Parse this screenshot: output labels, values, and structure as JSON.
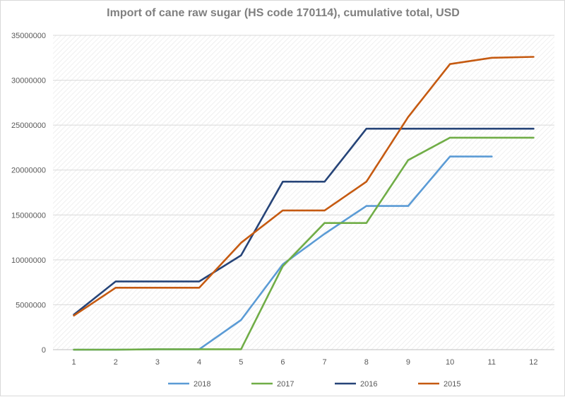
{
  "chart_data": {
    "type": "line",
    "title": "Import of cane raw sugar (HS code 170114), cumulative total, USD",
    "xlabel": "",
    "ylabel": "",
    "x": [
      1,
      2,
      3,
      4,
      5,
      6,
      7,
      8,
      9,
      10,
      11,
      12
    ],
    "ylim": [
      0,
      35000000
    ],
    "y_ticks": [
      "0",
      "5000000",
      "10000000",
      "15000000",
      "20000000",
      "25000000",
      "30000000",
      "35000000"
    ],
    "grid": true,
    "legend_position": "bottom",
    "series": [
      {
        "name": "2018",
        "color": "#5b9bd5",
        "values": [
          0,
          0,
          50000,
          50000,
          3300000,
          9500000,
          12900000,
          16000000,
          16000000,
          21500000,
          21500000,
          null
        ]
      },
      {
        "name": "2017",
        "color": "#70ad47",
        "values": [
          0,
          0,
          50000,
          50000,
          50000,
          9300000,
          14100000,
          14100000,
          21100000,
          23600000,
          23600000,
          23600000
        ]
      },
      {
        "name": "2016",
        "color": "#264478",
        "values": [
          3900000,
          7600000,
          7600000,
          7600000,
          10500000,
          18700000,
          18700000,
          24600000,
          24600000,
          24600000,
          24600000,
          24600000
        ]
      },
      {
        "name": "2015",
        "color": "#c55a11",
        "values": [
          3800000,
          6900000,
          6900000,
          6900000,
          11900000,
          15500000,
          15500000,
          18700000,
          25900000,
          31800000,
          32500000,
          32600000
        ]
      }
    ]
  }
}
